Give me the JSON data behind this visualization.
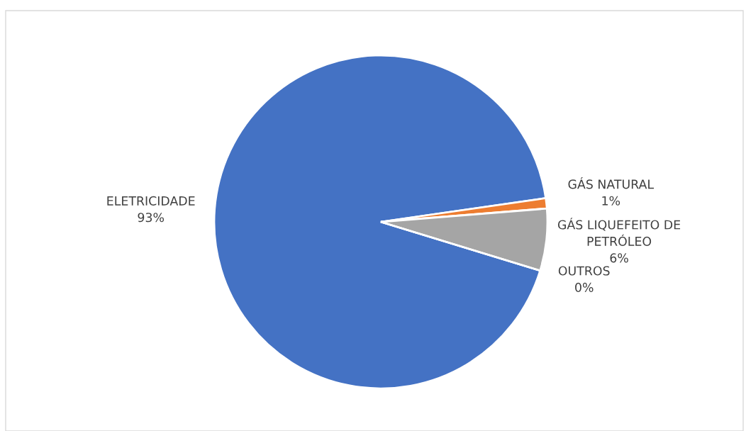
{
  "chart_data": {
    "type": "pie",
    "categories": [
      "ELETRICIDADE",
      "GÁS NATURAL",
      "GÁS LIQUEFEITO DE PETRÓLEO",
      "OUTROS"
    ],
    "values": [
      93,
      1,
      6,
      0
    ],
    "colors": [
      "#4472c4",
      "#ed7d31",
      "#a5a5a5",
      "#ffc000"
    ],
    "value_labels": [
      "93%",
      "1%",
      "6%",
      "0%"
    ]
  }
}
